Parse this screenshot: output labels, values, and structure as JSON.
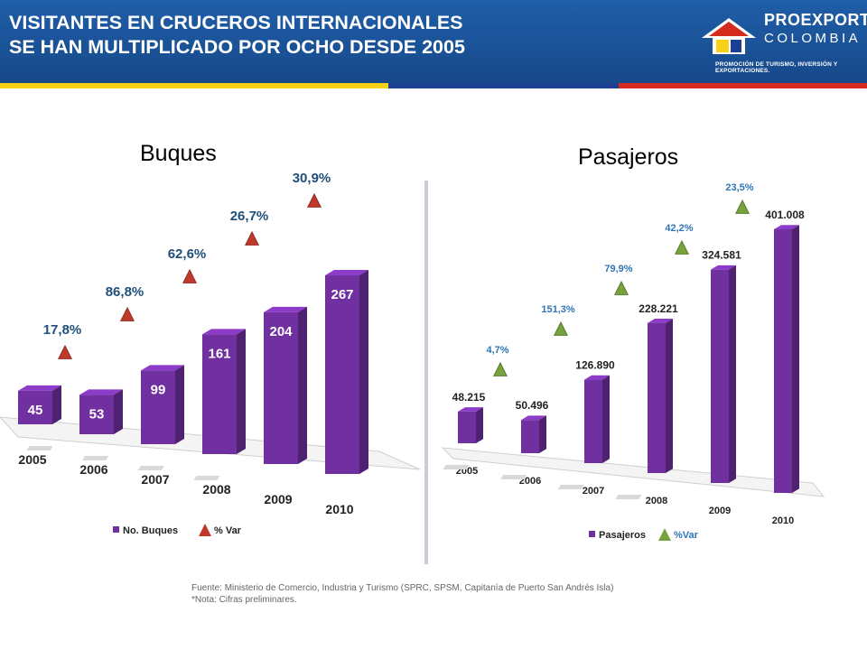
{
  "header": {
    "title_line1": "VISITANTES EN CRUCEROS INTERNACIONALES",
    "title_line2": "SE HAN MULTIPLICADO POR OCHO DESDE 2005"
  },
  "logo": {
    "name": "PROEXPORT",
    "country": "COLOMBIA",
    "tagline": "PROMOCIÓN DE TURISMO, INVERSIÓN Y EXPORTACIONES."
  },
  "chart_data": [
    {
      "type": "bar",
      "title": "Buques",
      "categories": [
        "2005",
        "2006",
        "2007",
        "2008",
        "2009",
        "2010"
      ],
      "values": [
        45,
        53,
        99,
        161,
        204,
        267
      ],
      "value_labels": [
        "45",
        "53",
        "99",
        "161",
        "204",
        "267"
      ],
      "var_labels": [
        "17,8%",
        "86,8%",
        "62,6%",
        "26,7%",
        "30,9%"
      ],
      "legend": [
        "No. Buques",
        "% Var"
      ],
      "colors": {
        "bar": "#7030a0",
        "marker": "#c0392b",
        "var_text": "#1f4e79"
      }
    },
    {
      "type": "bar",
      "title": "Pasajeros",
      "categories": [
        "2005",
        "2006",
        "2007",
        "2008",
        "2009",
        "2010"
      ],
      "values": [
        48215,
        50496,
        126890,
        228221,
        324581,
        401008
      ],
      "value_labels": [
        "48.215",
        "50.496",
        "126.890",
        "228.221",
        "324.581",
        "401.008"
      ],
      "var_labels": [
        "4,7%",
        "151,3%",
        "79,9%",
        "42,2%",
        "23,5%"
      ],
      "legend": [
        "Pasajeros",
        "%Var"
      ],
      "colors": {
        "bar": "#7030a0",
        "marker": "#77a33d",
        "var_text": "#2e75b6"
      }
    }
  ],
  "source": {
    "line1": "Fuente: Ministerio de Comercio, Industria y Turismo (SPRC, SPSM, Capitanía de Puerto San Andrés Isla)",
    "line2": "*Nota: Cifras preliminares."
  }
}
